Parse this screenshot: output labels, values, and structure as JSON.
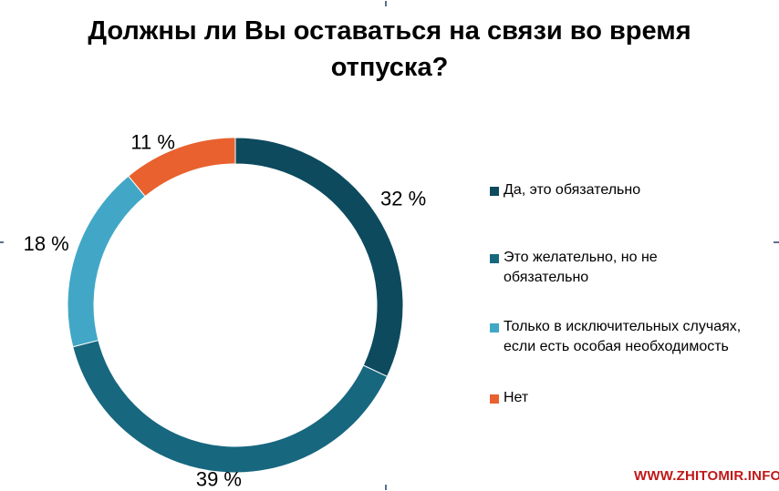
{
  "chart_data": {
    "type": "pie",
    "title_lines": [
      "Должны ли Вы оставаться на связи во время",
      "отпуска?"
    ],
    "slices": [
      {
        "label": "Да, это обязательно",
        "value": 32,
        "value_label": "32 %",
        "color": "#0d4a5e"
      },
      {
        "label": "Это желательно, но не обязательно",
        "value": 39,
        "value_label": "39 %",
        "color": "#17677f"
      },
      {
        "label": "Только в исключительных случаях, если есть особая необходимость",
        "value": 18,
        "value_label": "18 %",
        "color": "#42a7c6"
      },
      {
        "label": "Нет",
        "value": 11,
        "value_label": "11 %",
        "color": "#e8612e"
      }
    ],
    "donut": true,
    "legend_position": "right"
  },
  "legend": {
    "items": [
      {
        "lines": [
          "Да, это обязательно"
        ]
      },
      {
        "lines": [
          "Это желательно, но не",
          "обязательно"
        ]
      },
      {
        "lines": [
          "Только в исключительных случаях,",
          "если есть особая необходимость"
        ]
      },
      {
        "lines": [
          "Нет"
        ]
      }
    ]
  },
  "watermark": "WWW.ZHITOMIR.INFO"
}
